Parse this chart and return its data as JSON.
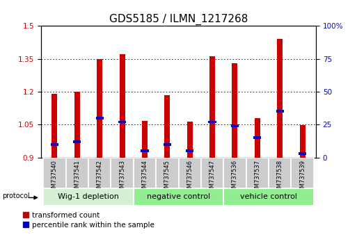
{
  "title": "GDS5185 / ILMN_1217268",
  "samples": [
    "GSM737540",
    "GSM737541",
    "GSM737542",
    "GSM737543",
    "GSM737544",
    "GSM737545",
    "GSM737546",
    "GSM737547",
    "GSM737536",
    "GSM737537",
    "GSM737538",
    "GSM737539"
  ],
  "red_values": [
    1.19,
    1.2,
    1.35,
    1.37,
    1.065,
    1.185,
    1.062,
    1.36,
    1.33,
    1.08,
    1.44,
    1.047
  ],
  "blue_values_pct": [
    10,
    12,
    30,
    27,
    5,
    10,
    5,
    27,
    24,
    15,
    35,
    3
  ],
  "ylim_left": [
    0.9,
    1.5
  ],
  "ylim_right": [
    0,
    100
  ],
  "yticks_left": [
    0.9,
    1.05,
    1.2,
    1.35,
    1.5
  ],
  "yticks_right": [
    0,
    25,
    50,
    75,
    100
  ],
  "groups": [
    {
      "label": "Wig-1 depletion",
      "start": 0,
      "end": 4
    },
    {
      "label": "negative control",
      "start": 4,
      "end": 8
    },
    {
      "label": "vehicle control",
      "start": 8,
      "end": 12
    }
  ],
  "group_colors": [
    "#d4f0d4",
    "#90ee90",
    "#90ee90"
  ],
  "bar_color_red": "#cc0000",
  "bar_color_blue": "#0000cc",
  "bar_width": 0.25,
  "bg_color": "#ffffff",
  "protocol_label": "protocol",
  "legend_red": "transformed count",
  "legend_blue": "percentile rank within the sample",
  "title_fontsize": 11,
  "tick_fontsize": 7.5,
  "sample_fontsize": 6,
  "group_fontsize": 8
}
